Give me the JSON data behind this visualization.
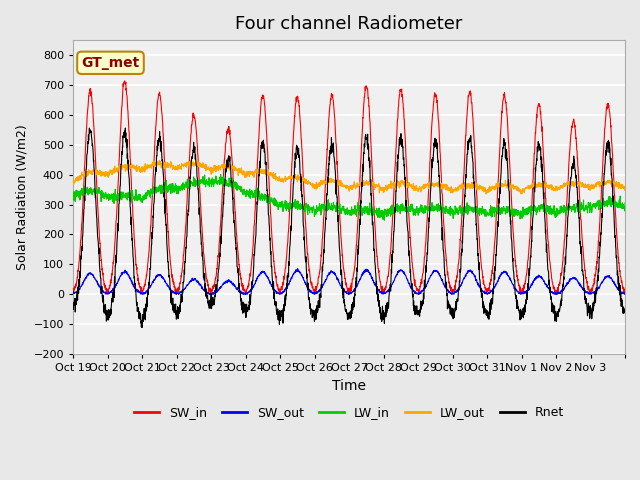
{
  "title": "Four channel Radiometer",
  "xlabel": "Time",
  "ylabel": "Solar Radiation (W/m2)",
  "ylim": [
    -200,
    850
  ],
  "yticks": [
    -200,
    -100,
    0,
    100,
    200,
    300,
    400,
    500,
    600,
    700,
    800
  ],
  "x_tick_positions": [
    0,
    1,
    2,
    3,
    4,
    5,
    6,
    7,
    8,
    9,
    10,
    11,
    12,
    13,
    14,
    15,
    16
  ],
  "x_tick_labels": [
    "Oct 19",
    "Oct 20",
    "Oct 21",
    "Oct 22",
    "Oct 23",
    "Oct 24",
    "Oct 25",
    "Oct 26",
    "Oct 27",
    "Oct 28",
    "Oct 29",
    "Oct 30",
    "Oct 31",
    "Nov 1",
    "Nov 2",
    "Nov 3",
    ""
  ],
  "num_days": 16,
  "points_per_day": 144,
  "legend_entries": [
    "SW_in",
    "SW_out",
    "LW_in",
    "LW_out",
    "Rnet"
  ],
  "colors": {
    "SW_in": "#FF0000",
    "SW_out": "#0000FF",
    "LW_in": "#00CC00",
    "LW_out": "#FFA500",
    "Rnet": "#000000"
  },
  "annotation_text": "GT_met",
  "annotation_color": "#8B0000",
  "annotation_bg": "#FFFFCC",
  "annotation_border": "#B8860B",
  "background_color": "#E8E8E8",
  "plot_bg_color": "#F0F0F0",
  "grid_color": "#FFFFFF",
  "title_fontsize": 13
}
